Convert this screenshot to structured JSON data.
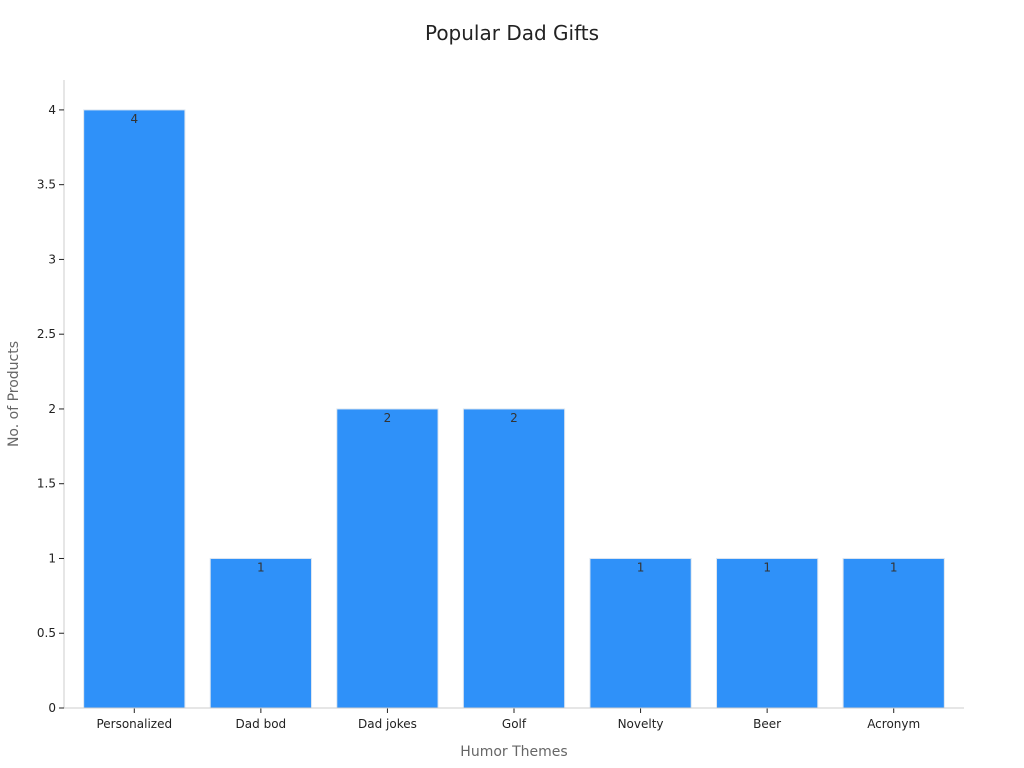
{
  "chart_data": {
    "type": "bar",
    "title": "Popular Dad Gifts",
    "xlabel": "Humor Themes",
    "ylabel": "No. of Products",
    "categories": [
      "Personalized",
      "Dad bod",
      "Dad jokes",
      "Golf",
      "Novelty",
      "Beer",
      "Acronym"
    ],
    "values": [
      4,
      1,
      2,
      2,
      1,
      1,
      1
    ],
    "ylim": [
      0,
      4.2
    ],
    "yticks": [
      0,
      0.5,
      1,
      1.5,
      2,
      2.5,
      3,
      3.5,
      4
    ],
    "ytick_labels": [
      "0",
      "0.5",
      "1",
      "1.5",
      "2",
      "2.5",
      "3",
      "3.5",
      "4"
    ],
    "data_labels": [
      "4",
      "1",
      "2",
      "2",
      "1",
      "1",
      "1"
    ],
    "bar_color": "#2f91f9",
    "grid": false,
    "legend": "none"
  }
}
